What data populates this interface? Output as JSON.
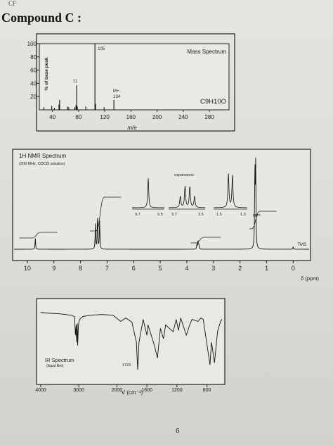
{
  "page": {
    "corner_mark": "CF",
    "title": "Compound C :",
    "page_number": "6"
  },
  "chart_data": [
    {
      "type": "bar",
      "title": "Mass Spectrum",
      "formula": "C9H10O",
      "xlabel": "m/e",
      "ylabel": "% of base peak",
      "xlim": [
        20,
        310
      ],
      "ylim": [
        0,
        100
      ],
      "x_ticks": [
        40,
        80,
        120,
        160,
        200,
        240,
        280
      ],
      "y_ticks": [
        20,
        40,
        60,
        80,
        100
      ],
      "peaks": [
        {
          "x": 27,
          "y": 4
        },
        {
          "x": 39,
          "y": 6
        },
        {
          "x": 43,
          "y": 3
        },
        {
          "x": 50,
          "y": 8
        },
        {
          "x": 51,
          "y": 15
        },
        {
          "x": 63,
          "y": 5
        },
        {
          "x": 65,
          "y": 4
        },
        {
          "x": 74,
          "y": 4
        },
        {
          "x": 76,
          "y": 7
        },
        {
          "x": 77,
          "y": 37
        },
        {
          "x": 78,
          "y": 5
        },
        {
          "x": 91,
          "y": 5
        },
        {
          "x": 105,
          "y": 100
        },
        {
          "x": 106,
          "y": 9
        },
        {
          "x": 119,
          "y": 4
        },
        {
          "x": 134,
          "y": 15
        }
      ],
      "labeled_peaks": [
        {
          "x": 105,
          "label": "105"
        },
        {
          "x": 77,
          "label": "77"
        },
        {
          "x": 134,
          "label": "M+·\n134"
        }
      ]
    },
    {
      "type": "line",
      "title": "1H NMR Spectrum",
      "subtitle": "(200 MHz, CDCl3 solution)",
      "xlabel": "δ (ppm)",
      "xlim": [
        10.5,
        -0.6
      ],
      "x_ticks": [
        10,
        9,
        8,
        7,
        6,
        5,
        4,
        3,
        2,
        1,
        0
      ],
      "peaks": [
        {
          "ppm": 9.7,
          "height": 0.13
        },
        {
          "ppm": 7.44,
          "height": 0.3
        },
        {
          "ppm": 7.36,
          "height": 0.42
        },
        {
          "ppm": 7.28,
          "height": 0.33
        },
        {
          "ppm": 3.62,
          "height": 0.06
        },
        {
          "ppm": 3.58,
          "height": 0.09
        },
        {
          "ppm": 3.55,
          "height": 0.06
        },
        {
          "ppm": 1.44,
          "height": 0.97
        },
        {
          "ppm": 1.41,
          "height": 0.95
        },
        {
          "ppm": 0.0,
          "height": 0.03
        }
      ],
      "reference_label": "TMS",
      "integral_steps": [
        {
          "from": 10.3,
          "to": 9.45,
          "rise": 0.08
        },
        {
          "from": 7.65,
          "to": 7.05,
          "rise": 0.48
        },
        {
          "from": 3.85,
          "to": 3.3,
          "rise": 0.08
        },
        {
          "from": 1.65,
          "to": 1.2,
          "rise": 0.25
        }
      ],
      "expansions": {
        "label": "expansions",
        "unit": "ppm",
        "panels": [
          {
            "ticks": [
              "9.7",
              "9.5"
            ]
          },
          {
            "ticks": [
              "3.7",
              "3.5"
            ]
          },
          {
            "ticks": [
              "1.5",
              "1.3"
            ]
          }
        ]
      }
    },
    {
      "type": "line",
      "title": "IR Spectrum",
      "subtitle": "(liquid film)",
      "xlabel": "V (cm⁻¹)",
      "xlim": [
        4000,
        600
      ],
      "x_ticks": [
        4000,
        3000,
        2000,
        1600,
        1200,
        800
      ],
      "annotation": {
        "x": 1723,
        "label": "1723"
      },
      "transmittance": [
        [
          4000,
          0.88
        ],
        [
          3800,
          0.87
        ],
        [
          3500,
          0.86
        ],
        [
          3200,
          0.84
        ],
        [
          3110,
          0.82
        ],
        [
          3090,
          0.55
        ],
        [
          3070,
          0.7
        ],
        [
          3060,
          0.45
        ],
        [
          3040,
          0.72
        ],
        [
          3030,
          0.4
        ],
        [
          3010,
          0.7
        ],
        [
          2980,
          0.78
        ],
        [
          2900,
          0.82
        ],
        [
          2700,
          0.84
        ],
        [
          2400,
          0.85
        ],
        [
          2100,
          0.84
        ],
        [
          1950,
          0.75
        ],
        [
          1880,
          0.8
        ],
        [
          1800,
          0.74
        ],
        [
          1740,
          0.45
        ],
        [
          1723,
          0.05
        ],
        [
          1705,
          0.45
        ],
        [
          1650,
          0.78
        ],
        [
          1600,
          0.55
        ],
        [
          1585,
          0.7
        ],
        [
          1500,
          0.4
        ],
        [
          1460,
          0.22
        ],
        [
          1420,
          0.65
        ],
        [
          1380,
          0.5
        ],
        [
          1350,
          0.7
        ],
        [
          1250,
          0.6
        ],
        [
          1210,
          0.78
        ],
        [
          1180,
          0.62
        ],
        [
          1150,
          0.8
        ],
        [
          1075,
          0.55
        ],
        [
          1030,
          0.7
        ],
        [
          1000,
          0.78
        ],
        [
          920,
          0.75
        ],
        [
          880,
          0.8
        ],
        [
          850,
          0.78
        ],
        [
          760,
          0.12
        ],
        [
          740,
          0.45
        ],
        [
          700,
          0.15
        ],
        [
          660,
          0.6
        ],
        [
          620,
          0.75
        ],
        [
          600,
          0.78
        ]
      ]
    }
  ]
}
